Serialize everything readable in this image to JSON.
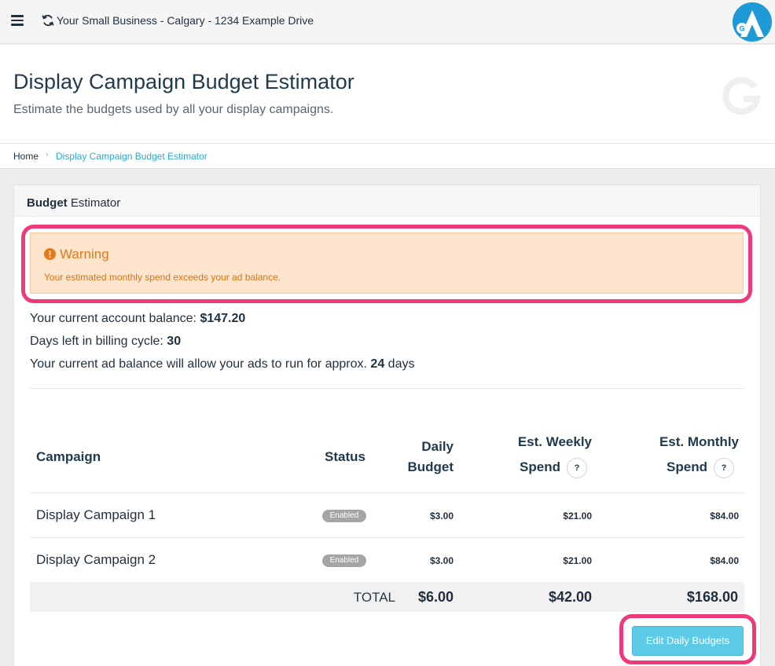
{
  "topbar": {
    "business_name": "Your Small Business - Calgary - 1234 Example Drive"
  },
  "header": {
    "title": "Display Campaign Budget Estimator",
    "subtitle": "Estimate the budgets used by all your display campaigns."
  },
  "breadcrumb": {
    "home": "Home",
    "separator": "›",
    "current": "Display Campaign Budget Estimator"
  },
  "panel": {
    "title_bold": "Budget",
    "title_rest": " Estimator"
  },
  "warning": {
    "title": "Warning",
    "message": "Your estimated monthly spend exceeds your ad balance."
  },
  "info": {
    "balance_label": "Your current account balance: ",
    "balance_value": "$147.20",
    "days_label": "Days left in billing cycle: ",
    "days_value": "30",
    "runtime_label": "Your current ad balance will allow your ads to run for approx. ",
    "runtime_value": "24",
    "runtime_suffix": " days"
  },
  "table": {
    "headers": {
      "campaign": "Campaign",
      "status": "Status",
      "daily_1": "Daily",
      "daily_2": "Budget",
      "weekly_1": "Est. Weekly",
      "weekly_2": "Spend",
      "monthly_1": "Est. Monthly",
      "monthly_2": "Spend",
      "help": "?"
    },
    "rows": [
      {
        "campaign": "Display Campaign 1",
        "status": "Enabled",
        "daily": "$3.00",
        "weekly": "$21.00",
        "monthly": "$84.00"
      },
      {
        "campaign": "Display Campaign 2",
        "status": "Enabled",
        "daily": "$3.00",
        "weekly": "$21.00",
        "monthly": "$84.00"
      }
    ],
    "total": {
      "label": "TOTAL",
      "daily": "$6.00",
      "weekly": "$42.00",
      "monthly": "$168.00"
    }
  },
  "actions": {
    "edit_label": "Edit Daily Budgets"
  },
  "colors": {
    "accent": "#27a9d6",
    "warning_bg": "#fde4cc",
    "warning_text": "#e07a1a",
    "highlight": "#ee3a7a",
    "button": "#5dcbe8"
  }
}
